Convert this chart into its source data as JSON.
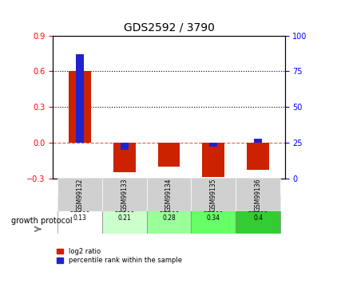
{
  "title": "GDS2592 / 3790",
  "samples": [
    "GSM99132",
    "GSM99133",
    "GSM99134",
    "GSM99135",
    "GSM99136"
  ],
  "log2_ratio": [
    0.605,
    -0.25,
    -0.2,
    -0.285,
    -0.225
  ],
  "percentile_rank": [
    87,
    20,
    25,
    22,
    28
  ],
  "protocol_label": "growth protocol",
  "protocol_values": [
    "OD600\n0.13",
    "OD600\n0.21",
    "OD600\n0.28",
    "OD600\n0.34",
    "OD600\n0.4"
  ],
  "protocol_colors": [
    "#ffffff",
    "#ccffcc",
    "#99ff99",
    "#66ff66",
    "#33cc33"
  ],
  "ylim_left": [
    -0.3,
    0.9
  ],
  "ylim_right": [
    0,
    100
  ],
  "yticks_left": [
    -0.3,
    0.0,
    0.3,
    0.6,
    0.9
  ],
  "yticks_right": [
    0,
    25,
    50,
    75,
    100
  ],
  "bar_color_red": "#cc2200",
  "bar_color_blue": "#2222cc",
  "grid_lines": [
    0.3,
    0.6
  ],
  "zero_line": 0.0,
  "bar_width": 0.5
}
